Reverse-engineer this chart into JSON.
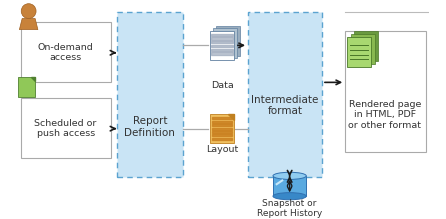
{
  "bg_color": "#ffffff",
  "lb": "#c9e4f5",
  "bd": "#5ba3d0",
  "lc": "#aaaaaa",
  "ac": "#1a1a1a",
  "tc": "#333333",
  "on_demand_text": "On-demand\naccess",
  "scheduled_text": "Scheduled or\npush access",
  "report_def_text": "Report\nDefinition",
  "intermediate_text": "Intermediate\nformat",
  "rendered_text": "Rendered page\nin HTML, PDF\nor other format",
  "data_label": "Data",
  "layout_label": "Layout",
  "snapshot_label": "Snapshot or\nReport History"
}
